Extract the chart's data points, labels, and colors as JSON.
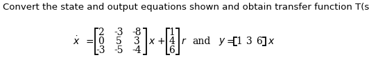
{
  "title": "Convert the state and output equations shown and obtain transfer function T(s).",
  "title_fontsize": 9.5,
  "bg_color": "#ffffff",
  "text_color": "#000000",
  "matrix_A": [
    [
      2,
      -3,
      -8
    ],
    [
      0,
      5,
      3
    ],
    [
      -3,
      -5,
      -4
    ]
  ],
  "vector_b": [
    1,
    4,
    6
  ],
  "C_row": [
    1,
    3,
    6
  ],
  "fs_label": 10,
  "fs_matrix": 10,
  "lw": 1.3
}
